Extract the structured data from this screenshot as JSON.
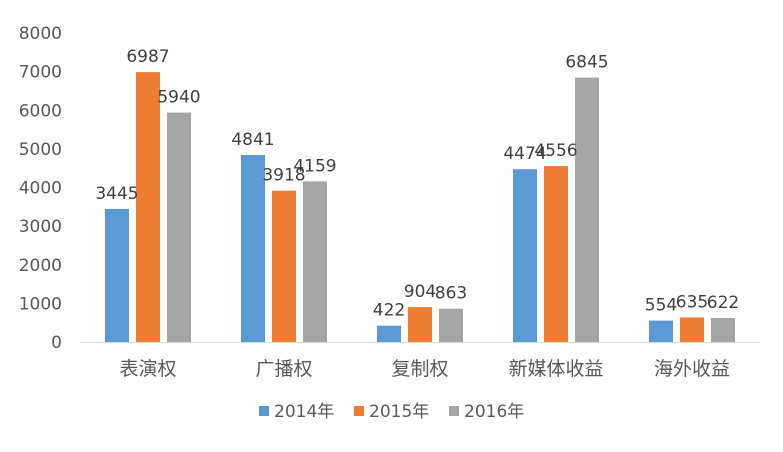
{
  "chart_data": {
    "type": "bar",
    "categories": [
      "表演权",
      "广播权",
      "复制权",
      "新媒体收益",
      "海外收益"
    ],
    "series": [
      {
        "name": "2014年",
        "color": "#5B9BD5",
        "values": [
          3445,
          4841,
          422,
          4474,
          554
        ]
      },
      {
        "name": "2015年",
        "color": "#ED7D31",
        "values": [
          6987,
          3918,
          904,
          4556,
          635
        ]
      },
      {
        "name": "2016年",
        "color": "#A5A5A5",
        "values": [
          5940,
          4159,
          863,
          6845,
          622
        ]
      }
    ],
    "ylim": [
      0,
      8000
    ],
    "yticks": [
      0,
      1000,
      2000,
      3000,
      4000,
      5000,
      6000,
      7000,
      8000
    ],
    "grid": false,
    "legend_position": "bottom"
  }
}
